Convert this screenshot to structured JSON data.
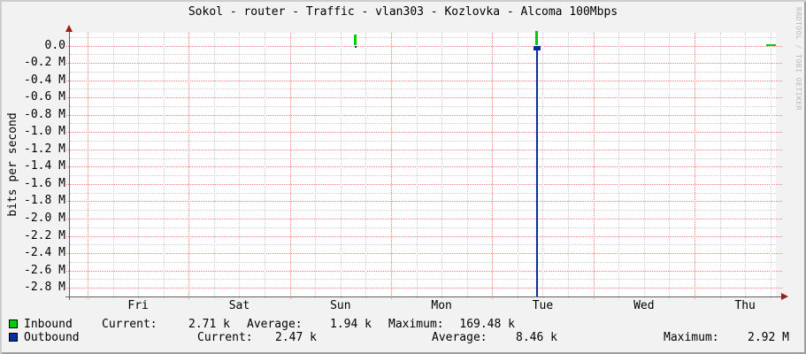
{
  "window": {
    "title": "Sokol - router - Traffic - vlan303 - Kozlovka - Alcoma 100Mbps"
  },
  "chart_data": {
    "type": "line",
    "title": "Sokol - router - Traffic - vlan303 - Kozlovka - Alcoma 100Mbps",
    "ylabel": "bits per second",
    "watermark": "RRDTOOL / TOBI OETIKER",
    "x_labels": [
      "Fri",
      "Sat",
      "Sun",
      "Mon",
      "Tue",
      "Wed",
      "Thu"
    ],
    "x_domain_days": [
      -0.175,
      6.805
    ],
    "ylim_bps": [
      -2900000,
      148000
    ],
    "y_ticks": [
      {
        "label": "0.0",
        "value": 0
      },
      {
        "label": "-0.2 M",
        "value": -200000
      },
      {
        "label": "-0.4 M",
        "value": -400000
      },
      {
        "label": "-0.6 M",
        "value": -600000
      },
      {
        "label": "-0.8 M",
        "value": -800000
      },
      {
        "label": "-1.0 M",
        "value": -1000000
      },
      {
        "label": "-1.2 M",
        "value": -1200000
      },
      {
        "label": "-1.4 M",
        "value": -1400000
      },
      {
        "label": "-1.6 M",
        "value": -1600000
      },
      {
        "label": "-1.8 M",
        "value": -1800000
      },
      {
        "label": "-2.0 M",
        "value": -2000000
      },
      {
        "label": "-2.2 M",
        "value": -2200000
      },
      {
        "label": "-2.4 M",
        "value": -2400000
      },
      {
        "label": "-2.6 M",
        "value": -2600000
      },
      {
        "label": "-2.8 M",
        "value": -2800000
      }
    ],
    "minor_y_step_bps": 100000,
    "minor_x_step_days": 0.25,
    "grid": true,
    "baseline_bps": 0,
    "series": [
      {
        "name": "Inbound",
        "color": "#00cc00"
      },
      {
        "name": "Outbound",
        "color": "#0b2e9f"
      }
    ],
    "events": [
      {
        "series": "Outbound",
        "t_days": 2.65,
        "peak_bps": -25000
      },
      {
        "series": "Outbound",
        "t_days": 4.443,
        "peak_bps": -2920000
      },
      {
        "series": "Inbound",
        "t_days": 2.65,
        "peak_bps": 123000
      },
      {
        "series": "Inbound",
        "t_days": 4.443,
        "peak_bps": 169480
      }
    ],
    "inbound_tail": {
      "t_start_days": 6.71,
      "t_end_days": 6.805,
      "value_bps": 2710
    }
  },
  "legend": {
    "rows": [
      {
        "name": "Inbound",
        "color": "#00cc00",
        "current_label": "Current:",
        "current_value": "2.71 k",
        "average_label": "Average:",
        "average_value": "1.94 k",
        "maximum_label": "Maximum:",
        "maximum_value": "169.48 k"
      },
      {
        "name": "Outbound",
        "color": "#0b2e9f",
        "current_label": "Current:",
        "current_value": "2.47 k",
        "average_label": "Average:",
        "average_value": "8.46 k",
        "maximum_label": "Maximum:",
        "maximum_value": "2.92 M"
      }
    ]
  }
}
